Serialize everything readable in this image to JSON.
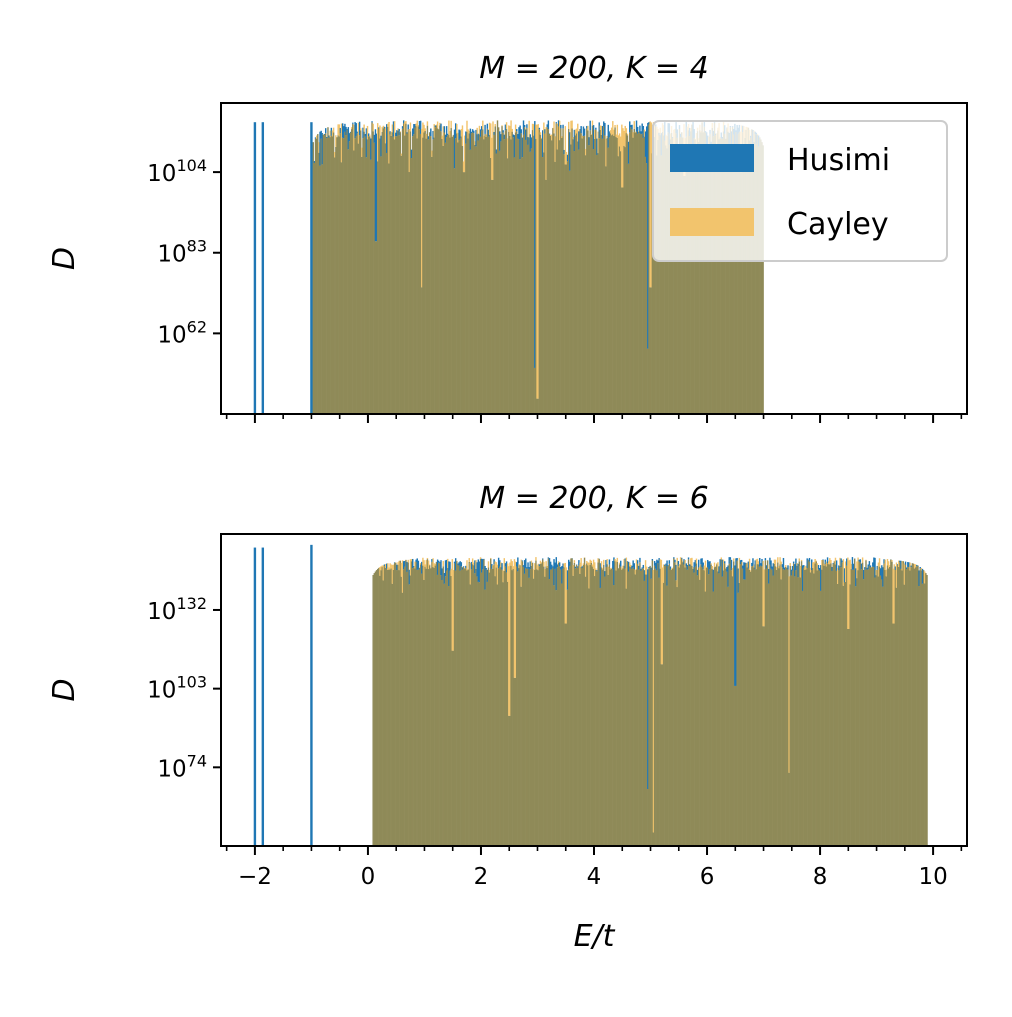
{
  "chart_data": [
    {
      "type": "bar",
      "title": "M = 200, K = 4",
      "ylabel": "D",
      "xlabel": "",
      "xlim": [
        -2.6,
        10.6
      ],
      "yscale": "log",
      "ylim_log10": [
        41,
        122
      ],
      "ytick_labels": [
        "10^104",
        "10^83",
        "10^62"
      ],
      "ytick_values_log10": [
        104,
        83,
        62
      ],
      "xticks_labeled": false,
      "grid": false,
      "legend": {
        "placement": "top-right",
        "entries": [
          "Husimi",
          "Cayley"
        ]
      },
      "band_range": [
        -1,
        7
      ],
      "envelope_peak_log10": 116,
      "isolated_levels": [
        {
          "x": -2.0,
          "log10": 117
        },
        {
          "x": -1.86,
          "log10": 117
        },
        {
          "x": -1.0,
          "log10": 117
        }
      ],
      "dips": [
        {
          "x": 0.14,
          "depth_log10": 86,
          "series": "Cayley"
        },
        {
          "x": 0.95,
          "depth_log10": 74,
          "series": "Husimi"
        },
        {
          "x": 1.7,
          "depth_log10": 104,
          "series": "Husimi"
        },
        {
          "x": 2.2,
          "depth_log10": 102,
          "series": "Husimi"
        },
        {
          "x": 2.95,
          "depth_log10": 53,
          "series": "Cayley"
        },
        {
          "x": 3.0,
          "depth_log10": 45,
          "series": "Husimi"
        },
        {
          "x": 3.15,
          "depth_log10": 102,
          "series": "Husimi"
        },
        {
          "x": 3.5,
          "depth_log10": 106,
          "series": "Husimi"
        },
        {
          "x": 4.5,
          "depth_log10": 100,
          "series": "Husimi"
        },
        {
          "x": 4.95,
          "depth_log10": 58,
          "series": "Cayley"
        },
        {
          "x": 5.0,
          "depth_log10": 74,
          "series": "Husimi"
        },
        {
          "x": 5.6,
          "depth_log10": 103,
          "series": "Husimi"
        },
        {
          "x": 6.6,
          "depth_log10": 104,
          "series": "Husimi"
        }
      ],
      "series": [
        {
          "name": "Husimi",
          "color": "#1f77b4"
        },
        {
          "name": "Cayley",
          "color": "#f2c46d"
        }
      ]
    },
    {
      "type": "bar",
      "title": "M = 200, K = 6",
      "ylabel": "D",
      "xlabel": "E/t",
      "xlim": [
        -2.6,
        10.6
      ],
      "yscale": "log",
      "ylim_log10": [
        45,
        160
      ],
      "ytick_labels": [
        "10^132",
        "10^103",
        "10^74"
      ],
      "ytick_values_log10": [
        132,
        103,
        74
      ],
      "xticks": [
        -2,
        0,
        2,
        4,
        6,
        8,
        10
      ],
      "xtick_labels": [
        "−2",
        "0",
        "2",
        "4",
        "6",
        "8",
        "10"
      ],
      "grid": false,
      "band_range": [
        0.08,
        9.9
      ],
      "envelope_peak_log10": 150,
      "isolated_levels": [
        {
          "x": -2.0,
          "log10": 155
        },
        {
          "x": -1.86,
          "log10": 155
        },
        {
          "x": -1.0,
          "log10": 156
        }
      ],
      "dips": [
        {
          "x": 1.5,
          "depth_log10": 117,
          "series": "Husimi"
        },
        {
          "x": 2.5,
          "depth_log10": 93,
          "series": "Husimi"
        },
        {
          "x": 2.6,
          "depth_log10": 107,
          "series": "Husimi"
        },
        {
          "x": 3.5,
          "depth_log10": 127,
          "series": "Husimi"
        },
        {
          "x": 4.95,
          "depth_log10": 66,
          "series": "Cayley"
        },
        {
          "x": 5.05,
          "depth_log10": 50,
          "series": "Husimi"
        },
        {
          "x": 5.2,
          "depth_log10": 112,
          "series": "Husimi"
        },
        {
          "x": 6.5,
          "depth_log10": 104,
          "series": "Cayley"
        },
        {
          "x": 7.0,
          "depth_log10": 126,
          "series": "Husimi"
        },
        {
          "x": 7.45,
          "depth_log10": 72,
          "series": "Husimi"
        },
        {
          "x": 8.5,
          "depth_log10": 125,
          "series": "Husimi"
        },
        {
          "x": 9.3,
          "depth_log10": 127,
          "series": "Husimi"
        }
      ],
      "series": [
        {
          "name": "Husimi",
          "color": "#1f77b4"
        },
        {
          "name": "Cayley",
          "color": "#f2c46d"
        }
      ]
    }
  ],
  "colors": {
    "overlap": "#8f8a58",
    "husimi": "#1f77b4",
    "cayley": "#f2c46d"
  }
}
